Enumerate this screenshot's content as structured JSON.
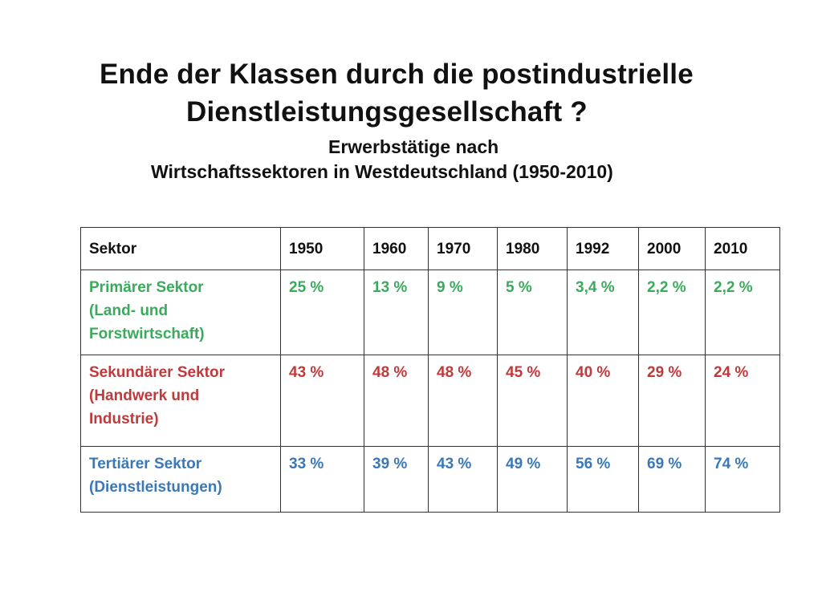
{
  "slide": {
    "title_line1": "Ende der Klassen durch die postindustrielle",
    "title_line2": "Dienstleistungsgesellschaft ?",
    "subtitle_line1": "Erwerbstätige nach",
    "subtitle_line2": "Wirtschaftssektoren in Westdeutschland (1950-2010)"
  },
  "table": {
    "headers": [
      "Sektor",
      "1950",
      "1960",
      "1970",
      "1980",
      "1992",
      "2000",
      "2010"
    ],
    "rows": [
      {
        "sector_lines": [
          "Primärer Sektor",
          "(Land- und",
          "Forstwirtschaft)"
        ],
        "color": "#3aaa5c",
        "values": [
          "25 %",
          "13 %",
          "9 %",
          "5 %",
          "3,4 %",
          "2,2 %",
          "2,2 %"
        ]
      },
      {
        "sector_lines": [
          "Sekundärer Sektor",
          "(Handwerk und",
          "Industrie)"
        ],
        "color": "#c0393b",
        "values": [
          "43 %",
          "48 %",
          "48 %",
          "45 %",
          "40 %",
          "29 %",
          "24 %"
        ]
      },
      {
        "sector_lines": [
          "Tertiärer Sektor",
          "(Dienstleistungen)"
        ],
        "color": "#3a78b8",
        "values": [
          "33 %",
          "39 %",
          "43 %",
          "49 %",
          "56 %",
          "69 %",
          "74 %"
        ]
      }
    ]
  }
}
